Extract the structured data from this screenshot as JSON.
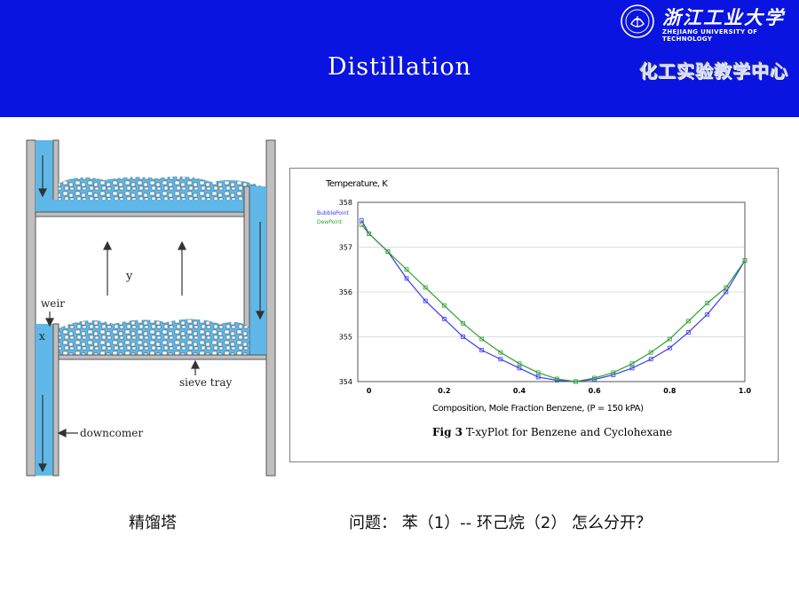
{
  "header": {
    "title": "Distillation",
    "university_cn": "浙江工业大学",
    "university_en": "ZHEJIANG UNIVERSITY OF TECHNOLOGY",
    "center_name": "化工实验教学中心",
    "bg_color": "#0a14e0"
  },
  "diagram": {
    "label_y": "y",
    "label_weir": "weir",
    "label_x": "x",
    "label_sieve": "sieve tray",
    "label_downcomer": "downcomer",
    "liquid_color": "#5fb8e8"
  },
  "chart_data": {
    "type": "line",
    "ylabel": "Temperature, K",
    "xlabel": "Composition, Mole Fraction Benzene, (P = 150 kPA)",
    "xlim": [
      0,
      1.0
    ],
    "ylim": [
      354,
      358
    ],
    "x_ticks": [
      "0",
      "0.2",
      "0.4",
      "0.6",
      "0.8",
      "1.0"
    ],
    "y_ticks": [
      "354",
      "355",
      "356",
      "357",
      "358"
    ],
    "legend_position": "top-left",
    "series": [
      {
        "name": "BubblePoint",
        "color": "#3a3aee",
        "x": [
          -0.02,
          0,
          0.05,
          0.1,
          0.15,
          0.2,
          0.25,
          0.3,
          0.35,
          0.4,
          0.45,
          0.5,
          0.55,
          0.6,
          0.65,
          0.7,
          0.75,
          0.8,
          0.85,
          0.9,
          0.95,
          1.0
        ],
        "y": [
          357.6,
          357.3,
          356.9,
          356.3,
          355.8,
          355.4,
          355.0,
          354.7,
          354.5,
          354.3,
          354.1,
          354.03,
          354.0,
          354.05,
          354.15,
          354.3,
          354.5,
          354.75,
          355.1,
          355.5,
          356.0,
          356.7
        ]
      },
      {
        "name": "DewPoint",
        "color": "#2fa02f",
        "x": [
          -0.02,
          0,
          0.05,
          0.1,
          0.15,
          0.2,
          0.25,
          0.3,
          0.35,
          0.4,
          0.45,
          0.5,
          0.55,
          0.6,
          0.65,
          0.7,
          0.75,
          0.8,
          0.85,
          0.9,
          0.95,
          1.0
        ],
        "y": [
          357.5,
          357.3,
          356.9,
          356.5,
          356.1,
          355.7,
          355.3,
          354.95,
          354.65,
          354.4,
          354.2,
          354.06,
          354.0,
          354.08,
          354.2,
          354.4,
          354.65,
          354.95,
          355.35,
          355.75,
          356.1,
          356.7
        ]
      }
    ],
    "figure_caption_bold": "Fig 3",
    "figure_caption": " T-xyPlot for Benzene and Cyclohexane"
  },
  "captions": {
    "left": "精馏塔",
    "right": "问题： 苯（1）-- 环己烷（2） 怎么分开？"
  }
}
